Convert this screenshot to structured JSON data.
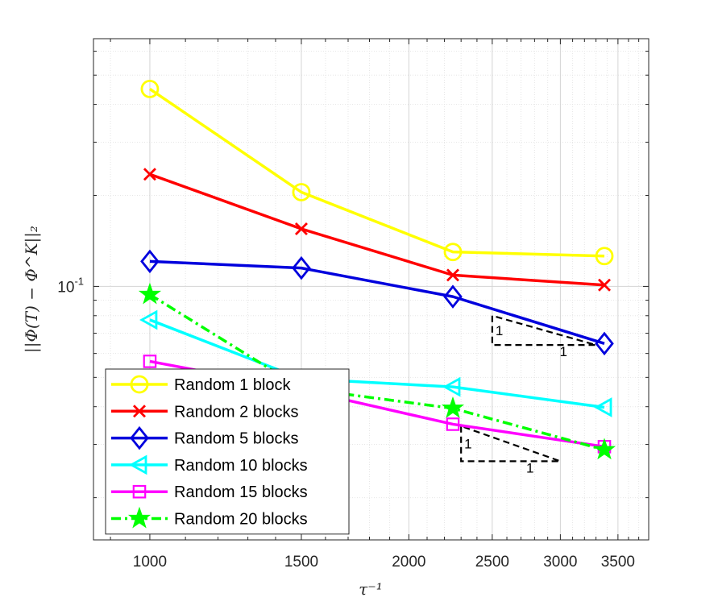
{
  "chart_data": {
    "type": "line",
    "xscale": "log",
    "yscale": "log",
    "xlabel": "τ⁻¹",
    "ylabel": "||Φ(T) − Φ^K||₂",
    "xlim": [
      860,
      3800
    ],
    "ylim": [
      0.0145,
      0.66
    ],
    "xticks": [
      1000,
      1500,
      2000,
      2500,
      3000,
      3500
    ],
    "xtick_labels": [
      "1000",
      "1500",
      "2000",
      "2500",
      "3000",
      "3500"
    ],
    "yticks": [
      0.1
    ],
    "ytick_labels": [
      "10",
      "-1"
    ],
    "grid": true,
    "legend_position": "bottom-left",
    "x": [
      1000,
      1500,
      2250,
      3375
    ],
    "series": [
      {
        "name": "Random 1 block",
        "color": "#ffff00",
        "marker": "circle",
        "linestyle": "solid",
        "values": [
          0.45,
          0.205,
          0.13,
          0.126
        ]
      },
      {
        "name": "Random 2 blocks",
        "color": "#ff0000",
        "marker": "x",
        "linestyle": "solid",
        "values": [
          0.235,
          0.155,
          0.109,
          0.101
        ]
      },
      {
        "name": "Random 5 blocks",
        "color": "#0000dd",
        "marker": "diamond",
        "linestyle": "solid",
        "values": [
          0.121,
          0.115,
          0.0925,
          0.0647
        ]
      },
      {
        "name": "Random 10 blocks",
        "color": "#00ffff",
        "marker": "triangle-left",
        "linestyle": "solid",
        "values": [
          0.0775,
          0.0495,
          0.0465,
          0.0398
        ]
      },
      {
        "name": "Random 15 blocks",
        "color": "#ff00ff",
        "marker": "square",
        "linestyle": "solid",
        "values": [
          0.0565,
          0.0455,
          0.035,
          0.0295
        ]
      },
      {
        "name": "Random 20 blocks",
        "color": "#00ff00",
        "marker": "star",
        "linestyle": "dashdot",
        "values": [
          0.094,
          0.046,
          0.0395,
          0.0288
        ]
      }
    ],
    "annotations": [
      {
        "type": "slope-triangle",
        "label_vertical": "1",
        "label_horizontal": "1",
        "x_left": 2500,
        "x_right": 3300,
        "y_bottom": 0.064,
        "y_top": 0.08
      },
      {
        "type": "slope-triangle",
        "label_vertical": "1",
        "label_horizontal": "1",
        "x_left": 2300,
        "x_right": 3000,
        "y_bottom": 0.0264,
        "y_top": 0.0345
      }
    ]
  }
}
